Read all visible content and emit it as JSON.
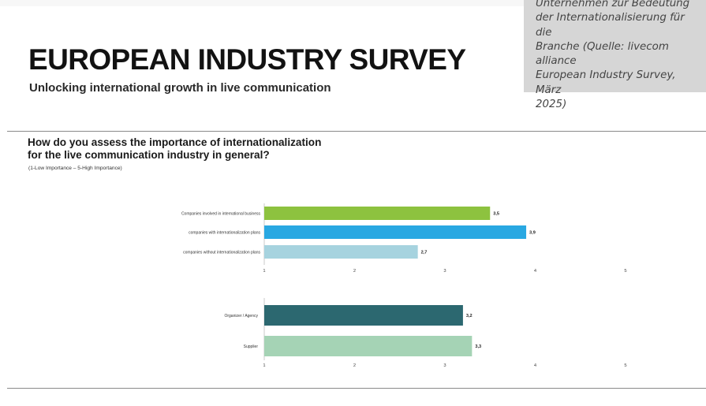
{
  "caption": {
    "text": "Unternehmen zur Bedeutung\nder Internationalisierung für die\nBranche (Quelle: livecom alliance\nEuropean Industry Survey, März\n2025)"
  },
  "header": {
    "title": "EUROPEAN INDUSTRY SURVEY",
    "subtitle": "Unlocking international growth in live communication"
  },
  "question": {
    "text": "How do you assess the importance of internationalization\nfor the live communication industry in general?",
    "scale_note": "(1-Low Importance – 5-High Importance)"
  },
  "chart_data": [
    {
      "type": "bar",
      "orientation": "horizontal",
      "categories": [
        "Companies involved in international business",
        "companies with internationalization plans",
        "companies without internationalization plans"
      ],
      "values": [
        3.5,
        3.9,
        2.7
      ],
      "value_labels": [
        "3,5",
        "3,9",
        "2,7"
      ],
      "colors": [
        "#8dc23f",
        "#29a8e2",
        "#a6d3df"
      ],
      "xlim": [
        1,
        5
      ],
      "ticks": [
        "1",
        "2",
        "3",
        "4",
        "5"
      ],
      "title": "",
      "xlabel": "",
      "ylabel": ""
    },
    {
      "type": "bar",
      "orientation": "horizontal",
      "categories": [
        "Organizer / Agency",
        "Supplier"
      ],
      "values": [
        3.2,
        3.3
      ],
      "value_labels": [
        "3,2",
        "3,3"
      ],
      "colors": [
        "#2c6870",
        "#a5d3b5"
      ],
      "xlim": [
        1,
        5
      ],
      "ticks": [
        "1",
        "2",
        "3",
        "4",
        "5"
      ],
      "title": "",
      "xlabel": "",
      "ylabel": ""
    }
  ]
}
